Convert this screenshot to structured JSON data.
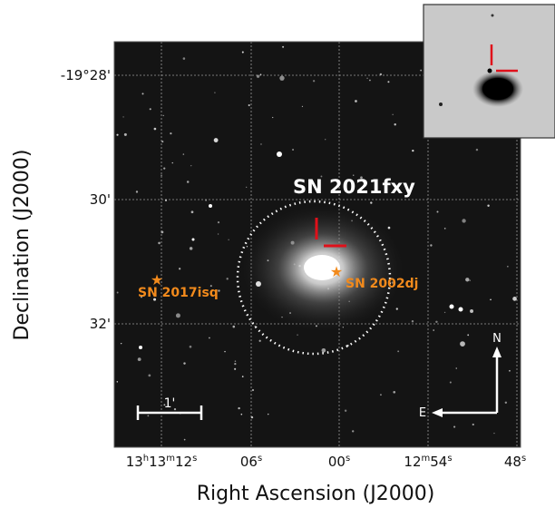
{
  "image": {
    "title": "SN 2021fxy",
    "annotations": [
      "SN 2017isq",
      "SN 2002dj"
    ],
    "scale_bar": "1'",
    "compass": [
      "N",
      "E"
    ],
    "xlabel": "Right Ascension (J2000)",
    "ylabel": "Declination (J2000)",
    "xticks": [
      [
        "13",
        "h",
        "13",
        "m",
        "12",
        "s"
      ],
      [
        "06",
        "s"
      ],
      [
        "00",
        "s"
      ],
      [
        "12",
        "m",
        "54",
        "s"
      ],
      [
        "48",
        "s"
      ]
    ],
    "yticks": [
      "-19°28'",
      "30'",
      "32'"
    ]
  }
}
